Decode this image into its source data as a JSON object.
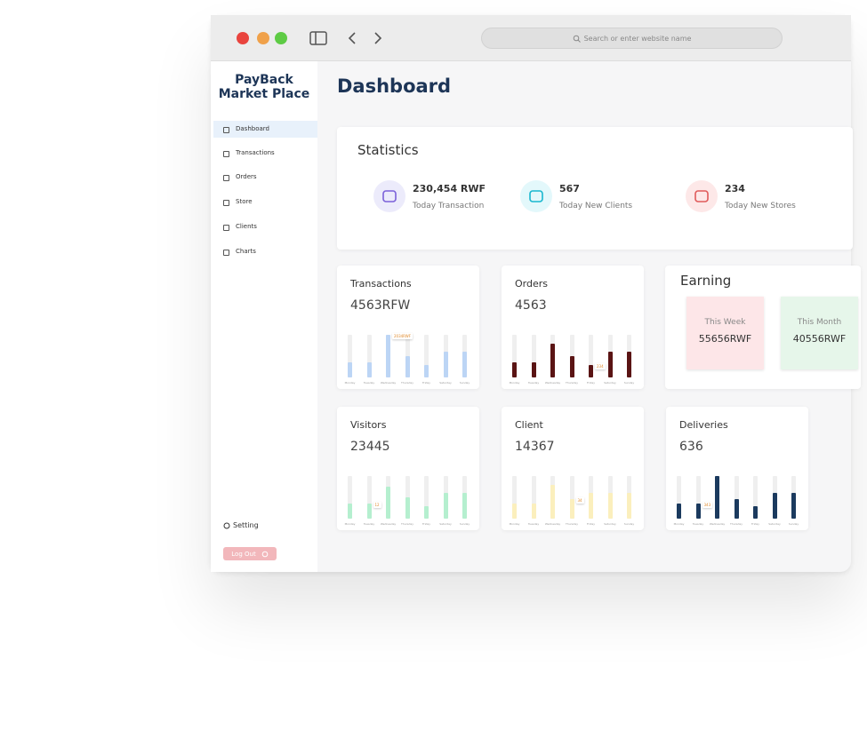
{
  "browser": {
    "search": "Search or enter website name"
  },
  "sidebar": {
    "brand": [
      "PayBack",
      "Market Place"
    ],
    "nav": [
      "Dashboard",
      "Transactions",
      "Orders",
      "Store",
      "Clients",
      "Charts"
    ],
    "setting": "Setting",
    "logout": "Log Out"
  },
  "header": {
    "title": "Dashboard"
  },
  "statistics": {
    "title": "Statistics",
    "items": [
      {
        "value": "230,454 RWF",
        "label": "Today Transaction",
        "color": "#7b61d9",
        "bg": "#ecebfb"
      },
      {
        "value": "567",
        "label": "Today New Clients",
        "color": "#18b7cf",
        "bg": "#e3f8fb"
      },
      {
        "value": "234",
        "label": "Today New Stores",
        "color": "#e05a5a",
        "bg": "#fde8e8"
      }
    ]
  },
  "days": [
    "Monday",
    "Tuesday",
    "Wednesday",
    "Thursday",
    "Friday",
    "Saturday",
    "Sunday"
  ],
  "cards": [
    {
      "title": "Transactions",
      "value": "4563RFW",
      "color": "#bcd5f5",
      "bars": [
        35,
        35,
        100,
        50,
        30,
        60,
        60
      ],
      "tooltip": "2034RWF"
    },
    {
      "title": "Orders",
      "value": "4563",
      "color": "#5a1414",
      "bars": [
        35,
        35,
        80,
        50,
        30,
        60,
        60
      ],
      "tooltip": "234"
    },
    {
      "title": "Visitors",
      "value": "23445",
      "color": "#b5efcf",
      "bars": [
        35,
        35,
        75,
        50,
        30,
        60,
        60
      ],
      "tooltip": "12"
    },
    {
      "title": "Client",
      "value": "14367",
      "color": "#fbefbd",
      "bars": [
        35,
        35,
        80,
        45,
        60,
        60,
        60
      ],
      "tooltip": "34"
    },
    {
      "title": "Deliveries",
      "value": "636",
      "color": "#1b3a5e",
      "bars": [
        35,
        35,
        100,
        45,
        30,
        60,
        60
      ],
      "tooltip": "343"
    }
  ],
  "earning": {
    "title": "Earning",
    "boxes": [
      {
        "label": "This Week",
        "value": "55656RWF",
        "bg": "#fde6e8"
      },
      {
        "label": "This Month",
        "value": "40556RWF",
        "bg": "#e6f6ea"
      }
    ]
  }
}
